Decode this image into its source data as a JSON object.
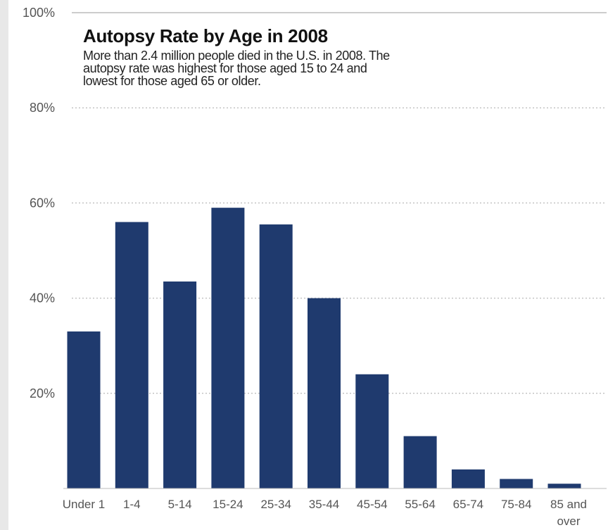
{
  "chart_data": {
    "type": "bar",
    "title": "Autopsy Rate by Age in 2008",
    "subtitle": "More than 2.4 million people died in the U.S. in 2008. The autopsy rate was highest for those aged 15 to 24 and lowest for those aged 65 or older.",
    "xlabel": "",
    "ylabel": "",
    "categories": [
      "Under 1",
      "1-4",
      "5-14",
      "15-24",
      "25-34",
      "35-44",
      "45-54",
      "55-64",
      "65-74",
      "75-84",
      "85 and over"
    ],
    "values": [
      33,
      56,
      43.5,
      59,
      55.5,
      40,
      24,
      11,
      4,
      2,
      1
    ],
    "ylim": [
      0,
      100
    ],
    "yticks": [
      100,
      80,
      60,
      40,
      20
    ],
    "ytick_labels": [
      "100%",
      "80%",
      "60%",
      "40%",
      "20%"
    ],
    "grid": "dotted horizontal",
    "legend": "none",
    "bar_color": "#1f3a6e"
  }
}
